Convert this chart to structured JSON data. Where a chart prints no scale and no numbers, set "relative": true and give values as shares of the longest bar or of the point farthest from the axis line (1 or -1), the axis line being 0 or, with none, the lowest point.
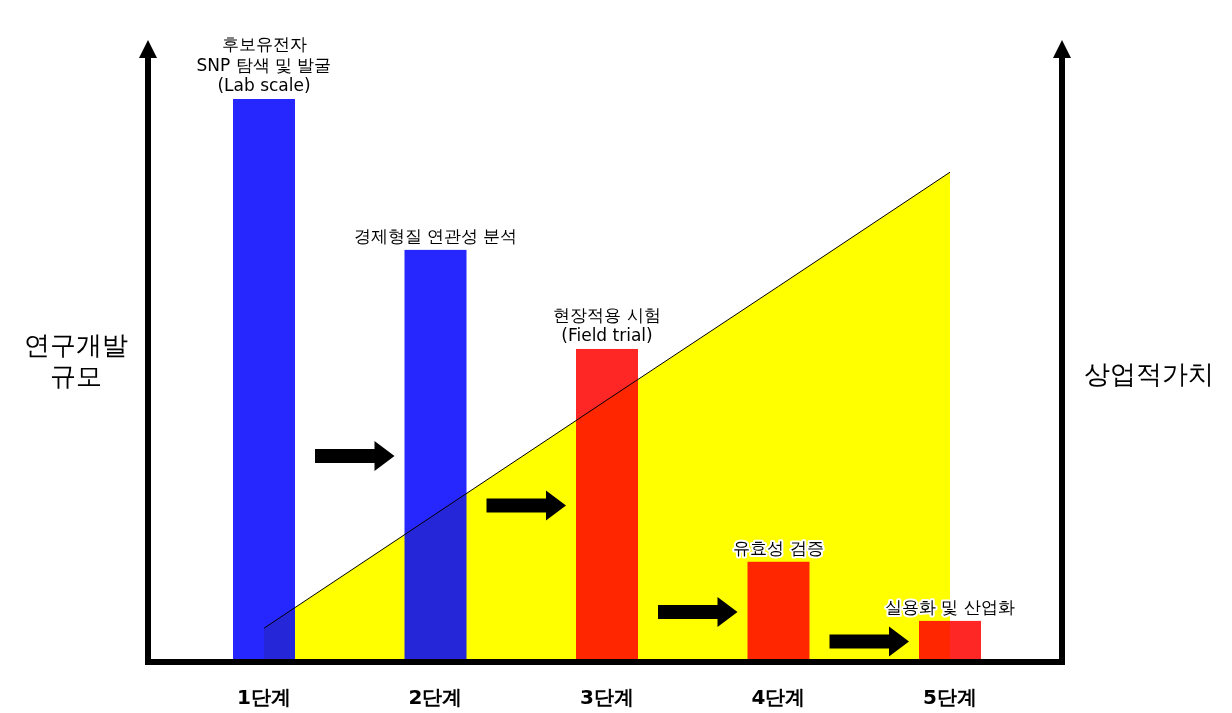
{
  "chart_data": {
    "type": "bar",
    "relative": true,
    "tick_labels": "x",
    "ylabel": "연구개발\n규모",
    "y2label": "상업적가치",
    "categories": [
      "1단계",
      "2단계",
      "3단계",
      "4단계",
      "5단계"
    ],
    "series": [
      {
        "type": "area",
        "axis": "y2",
        "color": "#ffff00",
        "values": [
          0.069,
          0.302,
          0.535,
          0.767,
          1
        ]
      },
      {
        "type": "bar",
        "colors": [
          "#0000ff",
          "#0000ff",
          "#ff0000",
          "#ff0000",
          "#ff0000"
        ],
        "values": [
          1,
          0.732,
          0.556,
          0.178,
          0.073
        ]
      }
    ],
    "annotations": [
      {
        "text": "후보유전자\nSNP 탐색 및 발굴\n(Lab scale)",
        "x": "1단계",
        "y": 1
      },
      {
        "text": "경제형질 연관성 분석",
        "x": "2단계",
        "y": 0.732
      },
      {
        "text": "현장적용 시험\n(Field trial)",
        "x": "3단계",
        "y": 0.556
      },
      {
        "text": "유효성 검증",
        "x": "4단계",
        "y": 0.178
      },
      {
        "text": "실용화 및 산업화",
        "x": "5단계",
        "y": 0.073
      }
    ]
  }
}
